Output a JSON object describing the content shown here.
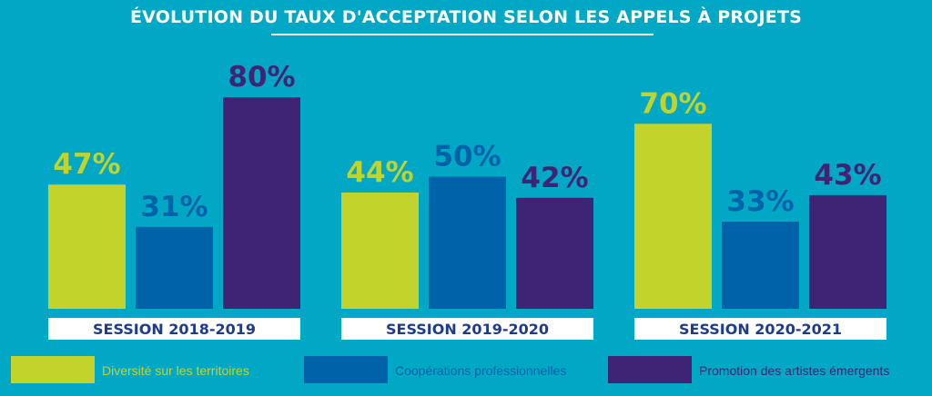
{
  "title": "ÉVOLUTION DU TAUX D'ACCEPTATION SELON LES APPELS À PROJETS",
  "colors": {
    "background": "#00a8c6",
    "series": [
      "#c2d42b",
      "#0062a8",
      "#3f2375"
    ],
    "label_text": "#1f3c8a"
  },
  "legend": [
    {
      "label": "Diversité sur les territoires",
      "color": "#c2d42b"
    },
    {
      "label": "Coopérations professionnelles",
      "color": "#0062a8"
    },
    {
      "label": "Promotion des artistes émergents",
      "color": "#3f2375"
    }
  ],
  "chart_data": {
    "type": "bar",
    "title": "ÉVOLUTION DU TAUX D'ACCEPTATION SELON LES APPELS À PROJETS",
    "categories": [
      "SESSION 2018-2019",
      "SESSION 2019-2020",
      "SESSION 2020-2021"
    ],
    "series": [
      {
        "name": "Diversité sur les territoires",
        "values": [
          47,
          44,
          70
        ]
      },
      {
        "name": "Coopérations professionnelles",
        "values": [
          31,
          50,
          33
        ]
      },
      {
        "name": "Promotion des artistes émergents",
        "values": [
          80,
          42,
          43
        ]
      }
    ],
    "value_labels": [
      [
        "47%",
        "44%",
        "70%"
      ],
      [
        "31%",
        "50%",
        "33%"
      ],
      [
        "80%",
        "42%",
        "43%"
      ]
    ],
    "ylim": [
      0,
      100
    ],
    "grid": false,
    "legend_position": "bottom"
  }
}
